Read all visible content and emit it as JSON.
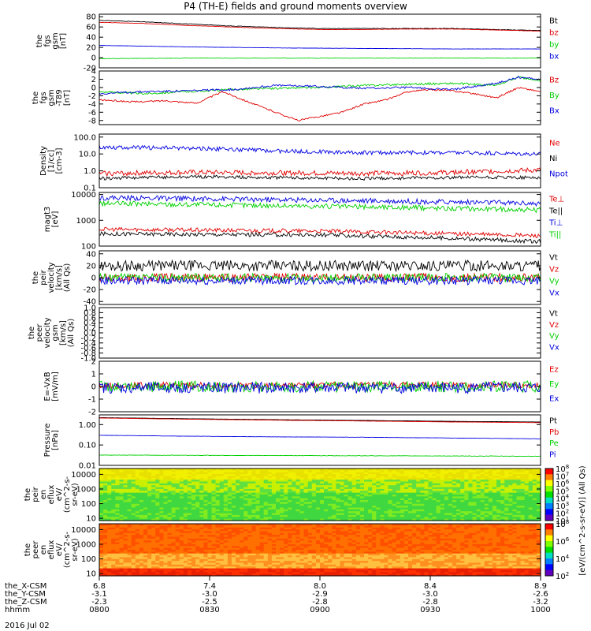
{
  "title": "P4 (TH-E) fields and ground moments overview",
  "chart_data": [
    {
      "type": "line",
      "ylabel": [
        "the",
        "fgs",
        "gsm",
        "[nT]"
      ],
      "ylim": [
        -20,
        85
      ],
      "yticks": [
        {
          "v": 80,
          "t": "80"
        },
        {
          "v": 60,
          "t": "60"
        },
        {
          "v": 40,
          "t": "40"
        },
        {
          "v": 20,
          "t": "20"
        },
        {
          "v": 0,
          "t": "0"
        },
        {
          "v": -20,
          "t": "-20"
        }
      ],
      "series": [
        {
          "name": "Bt",
          "color": "#000000",
          "x": [
            0,
            0.1,
            0.2,
            0.3,
            0.4,
            0.5,
            0.6,
            0.7,
            0.8,
            0.9,
            1
          ],
          "y": [
            73,
            70,
            66,
            62,
            59,
            57,
            57,
            57,
            57,
            55,
            53
          ]
        },
        {
          "name": "bz",
          "color": "#e00000",
          "x": [
            0,
            0.1,
            0.2,
            0.3,
            0.4,
            0.5,
            0.6,
            0.7,
            0.8,
            0.9,
            1
          ],
          "y": [
            69,
            67,
            63,
            60,
            57,
            55,
            55,
            56,
            56,
            54,
            52
          ]
        },
        {
          "name": "by",
          "color": "#00d000",
          "x": [
            0,
            0.2,
            0.4,
            0.6,
            0.8,
            1
          ],
          "y": [
            -2,
            -1,
            -1,
            -1,
            -1,
            -1
          ]
        },
        {
          "name": "bx",
          "color": "#0000e0",
          "x": [
            0,
            0.2,
            0.4,
            0.6,
            0.8,
            1
          ],
          "y": [
            24,
            21,
            19,
            18,
            17,
            17
          ]
        }
      ]
    },
    {
      "type": "line",
      "ylabel": [
        "the",
        "fgs",
        "gsm",
        "-T89",
        "[nT]"
      ],
      "ylim": [
        -9,
        4
      ],
      "yticks": [
        {
          "v": 4,
          "t": "4"
        },
        {
          "v": 2,
          "t": "2"
        },
        {
          "v": 0,
          "t": "0"
        },
        {
          "v": -2,
          "t": "-2"
        },
        {
          "v": -4,
          "t": "-4"
        },
        {
          "v": -6,
          "t": "-6"
        },
        {
          "v": -8,
          "t": "-8"
        }
      ],
      "series": [
        {
          "name": "Bz",
          "color": "#e00000",
          "x": [
            0,
            0.08,
            0.15,
            0.22,
            0.28,
            0.35,
            0.4,
            0.45,
            0.5,
            0.55,
            0.6,
            0.65,
            0.7,
            0.75,
            0.8,
            0.85,
            0.9,
            0.95,
            1
          ],
          "y": [
            -3,
            -3.5,
            -3.2,
            -3.8,
            -1,
            -4,
            -6,
            -8,
            -7,
            -6,
            -4,
            -3,
            -1,
            -0.5,
            -0.8,
            -1.5,
            -2.5,
            0,
            -1
          ]
        },
        {
          "name": "By",
          "color": "#00d000",
          "x": [
            0,
            0.1,
            0.2,
            0.3,
            0.4,
            0.5,
            0.6,
            0.7,
            0.8,
            0.9,
            0.95,
            1
          ],
          "y": [
            -1,
            -1.5,
            -1,
            -0.5,
            -0.2,
            0,
            0.5,
            0.8,
            1,
            0.5,
            2.5,
            1.5
          ]
        },
        {
          "name": "Bx",
          "color": "#0000e0",
          "x": [
            0,
            0.1,
            0.2,
            0.3,
            0.4,
            0.5,
            0.6,
            0.7,
            0.8,
            0.9,
            0.95,
            1
          ],
          "y": [
            -1.5,
            -1,
            -0.8,
            -0.5,
            0.5,
            0.3,
            -0.2,
            0,
            -0.5,
            1,
            2.5,
            2
          ]
        }
      ]
    },
    {
      "type": "line",
      "ylabel": [
        "Density",
        "[1/cc]",
        "[cm-3]"
      ],
      "ylim": [
        0.1,
        150
      ],
      "log": true,
      "yticks": [
        {
          "v": 100,
          "t": "100.0"
        },
        {
          "v": 10,
          "t": "10.0"
        },
        {
          "v": 1,
          "t": "1.0"
        },
        {
          "v": 0.1,
          "t": "0.1"
        }
      ],
      "series": [
        {
          "name": "Ne",
          "color": "#e00000",
          "x": [
            0,
            0.2,
            0.4,
            0.6,
            0.8,
            1
          ],
          "y": [
            0.7,
            0.8,
            0.75,
            0.7,
            0.8,
            1.1
          ]
        },
        {
          "name": "Ni",
          "color": "#000000",
          "x": [
            0,
            0.2,
            0.4,
            0.6,
            0.8,
            1
          ],
          "y": [
            0.35,
            0.45,
            0.4,
            0.35,
            0.4,
            0.4
          ]
        },
        {
          "name": "Npot",
          "color": "#0000e0",
          "x": [
            0,
            0.2,
            0.4,
            0.6,
            0.8,
            1
          ],
          "y": [
            25,
            22,
            15,
            12,
            12,
            10
          ]
        }
      ]
    },
    {
      "type": "line",
      "ylabel": [
        "magt3",
        "[eV]"
      ],
      "ylim": [
        100,
        12000
      ],
      "log": true,
      "yticks": [
        {
          "v": 10000,
          "t": "10000"
        },
        {
          "v": 1000,
          "t": "1000"
        },
        {
          "v": 100,
          "t": "100"
        }
      ],
      "series": [
        {
          "name": "Te⊥",
          "color": "#e00000",
          "x": [
            0,
            0.5,
            1
          ],
          "y": [
            450,
            380,
            250
          ]
        },
        {
          "name": "Te||",
          "color": "#000000",
          "x": [
            0,
            0.5,
            1
          ],
          "y": [
            300,
            270,
            150
          ]
        },
        {
          "name": "Ti⊥",
          "color": "#0000e0",
          "x": [
            0,
            0.5,
            1
          ],
          "y": [
            7500,
            6000,
            4500
          ]
        },
        {
          "name": "Ti||",
          "color": "#00d000",
          "x": [
            0,
            0.5,
            1
          ],
          "y": [
            4500,
            3500,
            2500
          ]
        }
      ]
    },
    {
      "type": "line",
      "ylabel": [
        "the",
        "peir",
        "velocity",
        "[km/s]",
        "(All Qs)"
      ],
      "ylim": [
        -45,
        45
      ],
      "yticks": [
        {
          "v": 40,
          "t": "40"
        },
        {
          "v": 20,
          "t": "20"
        },
        {
          "v": 0,
          "t": "0"
        },
        {
          "v": -20,
          "t": "-20"
        },
        {
          "v": -40,
          "t": "-40"
        }
      ],
      "series": [
        {
          "name": "Vt",
          "color": "#000000",
          "x": [
            0,
            1
          ],
          "y": [
            20,
            20
          ]
        },
        {
          "name": "Vz",
          "color": "#e00000",
          "x": [
            0,
            1
          ],
          "y": [
            0,
            0
          ]
        },
        {
          "name": "Vy",
          "color": "#00d000",
          "x": [
            0,
            1
          ],
          "y": [
            0,
            0
          ]
        },
        {
          "name": "Vx",
          "color": "#0000e0",
          "x": [
            0,
            1
          ],
          "y": [
            -5,
            -5
          ]
        }
      ]
    },
    {
      "type": "line",
      "ylabel": [
        "the",
        "peer",
        "velocity",
        "gsm",
        "[km/s]",
        "(All Qs)"
      ],
      "ylim": [
        -1,
        1
      ],
      "yticks": [
        {
          "v": 1,
          "t": "1.0"
        },
        {
          "v": 0.8,
          "t": "0.8"
        },
        {
          "v": 0.6,
          "t": "0.6"
        },
        {
          "v": 0.4,
          "t": "0.4"
        },
        {
          "v": 0.2,
          "t": "0.2"
        },
        {
          "v": 0,
          "t": "0.0"
        },
        {
          "v": -0.2,
          "t": "-0.2"
        },
        {
          "v": -0.4,
          "t": "-0.4"
        },
        {
          "v": -0.6,
          "t": "-0.6"
        },
        {
          "v": -0.8,
          "t": "-0.8"
        },
        {
          "v": -1,
          "t": "-1.0"
        }
      ],
      "series": [
        {
          "name": "Vt",
          "color": "#000000",
          "x": [],
          "y": []
        },
        {
          "name": "Vz",
          "color": "#e00000",
          "x": [],
          "y": []
        },
        {
          "name": "Vy",
          "color": "#00d000",
          "x": [],
          "y": []
        },
        {
          "name": "Vx",
          "color": "#0000e0",
          "x": [],
          "y": []
        }
      ]
    },
    {
      "type": "line",
      "ylabel": [
        "E=-VxB",
        "[mV/m]"
      ],
      "ylim": [
        -2,
        2
      ],
      "yticks": [
        {
          "v": 2,
          "t": "2"
        },
        {
          "v": 1,
          "t": "1"
        },
        {
          "v": 0,
          "t": "0"
        },
        {
          "v": -1,
          "t": "-1"
        },
        {
          "v": -2,
          "t": "-2"
        }
      ],
      "series": [
        {
          "name": "Ez",
          "color": "#e00000",
          "x": [
            0,
            1
          ],
          "y": [
            0.1,
            0.1
          ]
        },
        {
          "name": "Ey",
          "color": "#00d000",
          "x": [
            0,
            1
          ],
          "y": [
            0,
            0
          ]
        },
        {
          "name": "Ex",
          "color": "#0000e0",
          "x": [
            0,
            1
          ],
          "y": [
            -0.1,
            -0.1
          ]
        }
      ]
    },
    {
      "type": "line",
      "ylabel": [
        "Pressure",
        "[nPa]"
      ],
      "ylim": [
        0.01,
        3
      ],
      "log": true,
      "yticks": [
        {
          "v": 1,
          "t": "1.00"
        },
        {
          "v": 0.1,
          "t": "0.10"
        },
        {
          "v": 0.01,
          "t": "0.01"
        }
      ],
      "series": [
        {
          "name": "Pt",
          "color": "#000000",
          "x": [
            0,
            0.2,
            0.4,
            0.6,
            0.8,
            1
          ],
          "y": [
            2.2,
            1.95,
            1.75,
            1.6,
            1.45,
            1.35
          ]
        },
        {
          "name": "Pb",
          "color": "#e00000",
          "x": [
            0,
            0.2,
            0.4,
            0.6,
            0.8,
            1
          ],
          "y": [
            2.1,
            1.85,
            1.65,
            1.5,
            1.35,
            1.25
          ]
        },
        {
          "name": "Pe",
          "color": "#00d000",
          "x": [
            0,
            0.5,
            1
          ],
          "y": [
            0.032,
            0.03,
            0.028
          ]
        },
        {
          "name": "Pi",
          "color": "#0000e0",
          "x": [
            0,
            0.2,
            0.4,
            0.6,
            0.8,
            1
          ],
          "y": [
            0.3,
            0.27,
            0.25,
            0.24,
            0.22,
            0.2
          ]
        }
      ]
    },
    {
      "type": "heatmap",
      "ylabel": [
        "the",
        "peir",
        "en",
        "eflux",
        "eV/",
        "(cm^2-s-",
        "sr-eV)"
      ],
      "ylim": [
        7,
        25000
      ],
      "log": true,
      "yticks": [
        {
          "v": 10000,
          "t": "10000"
        },
        {
          "v": 1000,
          "t": "1000"
        },
        {
          "v": 100,
          "t": "100"
        },
        {
          "v": 10,
          "t": "10"
        }
      ],
      "colorbar": {
        "label": "eV/(cm^2-s-sr-eV)",
        "ticks": [
          "10^8",
          "10^7",
          "10^6",
          "10^5",
          "10^4",
          "10^3",
          "10^2",
          "10^1"
        ]
      }
    },
    {
      "type": "heatmap",
      "ylabel": [
        "the",
        "peer",
        "en",
        "eflux",
        "eV/",
        "(cm^2-s-",
        "sr-eV)"
      ],
      "ylim": [
        7,
        25000
      ],
      "log": true,
      "yticks": [
        {
          "v": 10000,
          "t": "10000"
        },
        {
          "v": 1000,
          "t": "1000"
        },
        {
          "v": 100,
          "t": "100"
        },
        {
          "v": 10,
          "t": "10"
        }
      ],
      "colorbar": {
        "label": "[eV/(cm^2-s-sr-eV)] (All Qs)",
        "ticks": [
          "10^8",
          "10^6",
          "10^4",
          "10^2"
        ]
      }
    }
  ],
  "xaxis": {
    "columns": [
      [
        "6.8",
        "-3.1",
        "-2.3",
        "0800"
      ],
      [
        "7.4",
        "-3.0",
        "-2.5",
        "0830"
      ],
      [
        "8.0",
        "-2.9",
        "-2.8",
        "0900"
      ],
      [
        "8.4",
        "-3.0",
        "-2.8",
        "0930"
      ],
      [
        "8.9",
        "-2.6",
        "-3.2",
        "1000"
      ]
    ],
    "rows": [
      "the_X-CSM",
      "the_Y-CSM",
      "the_Z-CSM",
      "hhmm"
    ],
    "date": "2016 Jul 02"
  },
  "colorbar_label": "[eV/(cm^2-s-sr-eV)] (All Qs)"
}
